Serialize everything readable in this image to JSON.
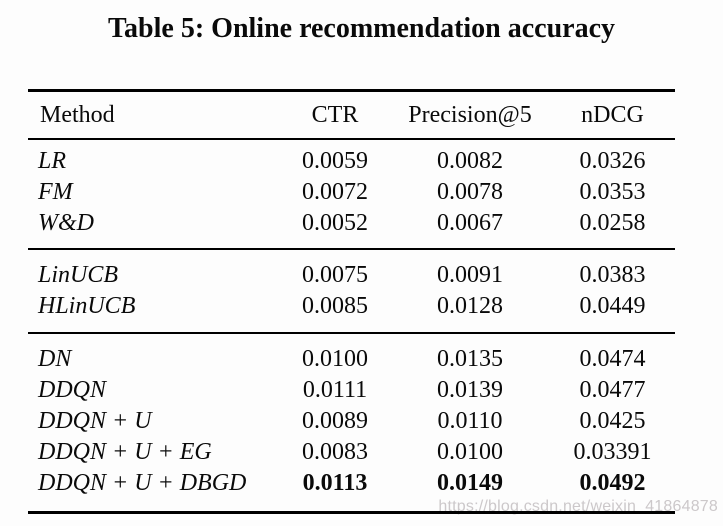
{
  "title": "Table 5: Online recommendation accuracy",
  "colors": {
    "background": "#fdfdfd",
    "text": "#0a0a0a",
    "rule": "#000000",
    "watermark": "#ccc8ca"
  },
  "watermark": {
    "text": "https://blog.csdn.net/weixin_41864878"
  },
  "table": {
    "header": {
      "method": "Method",
      "ctr": "CTR",
      "p5": "Precision@5",
      "ndcg": "nDCG"
    },
    "groups": [
      {
        "rows": [
          {
            "method": "LR",
            "ctr": "0.0059",
            "p5": "0.0082",
            "ndcg": "0.0326"
          },
          {
            "method": "FM",
            "ctr": "0.0072",
            "p5": "0.0078",
            "ndcg": "0.0353"
          },
          {
            "method": "W&D",
            "ctr": "0.0052",
            "p5": "0.0067",
            "ndcg": "0.0258"
          }
        ]
      },
      {
        "rows": [
          {
            "method": "LinUCB",
            "ctr": "0.0075",
            "p5": "0.0091",
            "ndcg": "0.0383"
          },
          {
            "method": "HLinUCB",
            "ctr": "0.0085",
            "p5": "0.0128",
            "ndcg": "0.0449"
          }
        ]
      },
      {
        "rows": [
          {
            "method": "DN",
            "ctr": "0.0100",
            "p5": "0.0135",
            "ndcg": "0.0474"
          },
          {
            "method": "DDQN",
            "ctr": "0.0111",
            "p5": "0.0139",
            "ndcg": "0.0477"
          },
          {
            "method": "DDQN + U",
            "ctr": "0.0089",
            "p5": "0.0110",
            "ndcg": "0.0425"
          },
          {
            "method": "DDQN + U + EG",
            "ctr": "0.0083",
            "p5": "0.0100",
            "ndcg": "0.03391"
          },
          {
            "method": "DDQN + U + DBGD",
            "ctr": "0.0113",
            "p5": "0.0149",
            "ndcg": "0.0492"
          }
        ]
      }
    ]
  },
  "chart_data": {
    "type": "table",
    "title": "Table 5: Online recommendation accuracy",
    "columns": [
      "Method",
      "CTR",
      "Precision@5",
      "nDCG"
    ],
    "rows": [
      [
        "LR",
        0.0059,
        0.0082,
        0.0326
      ],
      [
        "FM",
        0.0072,
        0.0078,
        0.0353
      ],
      [
        "W&D",
        0.0052,
        0.0067,
        0.0258
      ],
      [
        "LinUCB",
        0.0075,
        0.0091,
        0.0383
      ],
      [
        "HLinUCB",
        0.0085,
        0.0128,
        0.0449
      ],
      [
        "DN",
        0.01,
        0.0135,
        0.0474
      ],
      [
        "DDQN",
        0.0111,
        0.0139,
        0.0477
      ],
      [
        "DDQN + U",
        0.0089,
        0.011,
        0.0425
      ],
      [
        "DDQN + U + EG",
        0.0083,
        0.01,
        0.03391
      ],
      [
        "DDQN + U + DBGD",
        0.0113,
        0.0149,
        0.0492
      ]
    ],
    "notes": "Last row (DDQN + U + DBGD) metric values are bold (best results). Row groups separated by horizontal rules: [LR,FM,W&D], [LinUCB,HLinUCB], [DN..DBGD]."
  }
}
